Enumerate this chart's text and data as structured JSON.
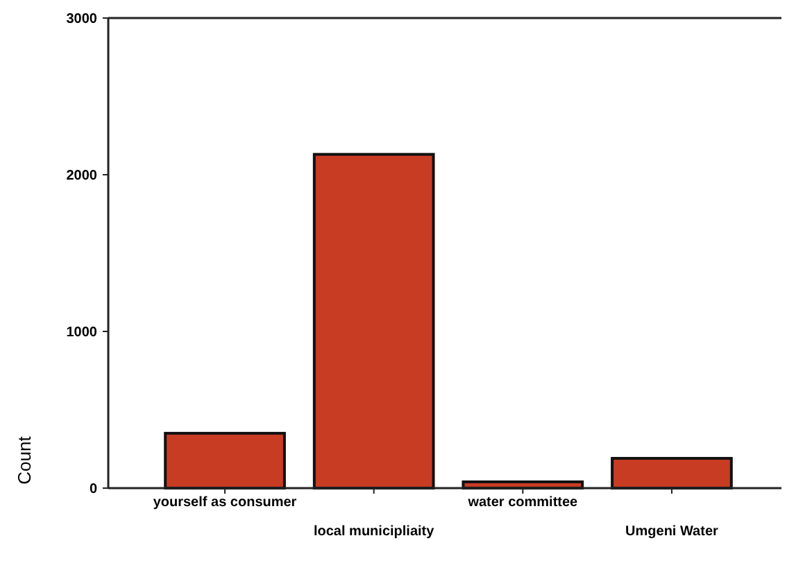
{
  "chart_data": {
    "type": "bar",
    "ylabel": "Count",
    "categories": [
      "yourself as consumer",
      "local municipliaity",
      "water committee",
      "Umgeni Water"
    ],
    "values": [
      350,
      2130,
      40,
      190
    ],
    "color": "#c83c23",
    "ylim": [
      0,
      3000
    ],
    "yticks": [
      0,
      1000,
      2000,
      3000
    ],
    "grid": false
  }
}
